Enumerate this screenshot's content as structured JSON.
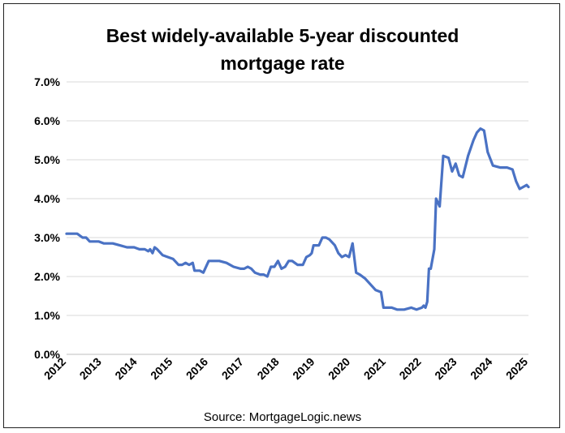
{
  "chart_data": {
    "type": "line",
    "title_lines": [
      "Best widely-available 5-year discounted",
      "mortgage rate"
    ],
    "source": "Source: MortgageLogic.news",
    "xlabel": "",
    "ylabel": "",
    "xlim": [
      2012,
      2025
    ],
    "ylim": [
      0,
      7
    ],
    "y_ticks": [
      {
        "value": 0,
        "label": "0.0%"
      },
      {
        "value": 1,
        "label": "1.0%"
      },
      {
        "value": 2,
        "label": "2.0%"
      },
      {
        "value": 3,
        "label": "3.0%"
      },
      {
        "value": 4,
        "label": "4.0%"
      },
      {
        "value": 5,
        "label": "5.0%"
      },
      {
        "value": 6,
        "label": "6.0%"
      },
      {
        "value": 7,
        "label": "7.0%"
      }
    ],
    "x_ticks": [
      {
        "value": 2012,
        "label": "2012"
      },
      {
        "value": 2013,
        "label": "2013"
      },
      {
        "value": 2014,
        "label": "2014"
      },
      {
        "value": 2015,
        "label": "2015"
      },
      {
        "value": 2016,
        "label": "2016"
      },
      {
        "value": 2017,
        "label": "2017"
      },
      {
        "value": 2018,
        "label": "2018"
      },
      {
        "value": 2019,
        "label": "2019"
      },
      {
        "value": 2020,
        "label": "2020"
      },
      {
        "value": 2021,
        "label": "2021"
      },
      {
        "value": 2022,
        "label": "2022"
      },
      {
        "value": 2023,
        "label": "2023"
      },
      {
        "value": 2024,
        "label": "2024"
      },
      {
        "value": 2025,
        "label": "2025"
      }
    ],
    "grid": true,
    "series_color": "#4a72c4",
    "series": [
      {
        "x": [
          2012.0,
          2012.1,
          2012.3,
          2012.45,
          2012.55,
          2012.65,
          2012.7,
          2012.9,
          2013.05,
          2013.3,
          2013.5,
          2013.7,
          2013.9,
          2014.05,
          2014.2,
          2014.3,
          2014.35,
          2014.42,
          2014.48,
          2014.55,
          2014.7,
          2014.85,
          2015.0,
          2015.05,
          2015.15,
          2015.25,
          2015.35,
          2015.45,
          2015.55,
          2015.6,
          2015.75,
          2015.85,
          2016.0,
          2016.1,
          2016.3,
          2016.5,
          2016.7,
          2016.9,
          2017.0,
          2017.1,
          2017.2,
          2017.3,
          2017.45,
          2017.55,
          2017.65,
          2017.75,
          2017.85,
          2017.95,
          2018.05,
          2018.15,
          2018.25,
          2018.35,
          2018.5,
          2018.65,
          2018.75,
          2018.85,
          2018.9,
          2018.95,
          2019.0,
          2019.1,
          2019.2,
          2019.3,
          2019.4,
          2019.55,
          2019.65,
          2019.75,
          2019.85,
          2019.95,
          2020.05,
          2020.15,
          2020.25,
          2020.4,
          2020.55,
          2020.7,
          2020.85,
          2020.92,
          2021.0,
          2021.15,
          2021.3,
          2021.5,
          2021.7,
          2021.85,
          2022.0,
          2022.05,
          2022.1,
          2022.15,
          2022.2,
          2022.25,
          2022.35,
          2022.4,
          2022.5,
          2022.6,
          2022.75,
          2022.85,
          2022.95,
          2023.05,
          2023.15,
          2023.3,
          2023.45,
          2023.55,
          2023.65,
          2023.75,
          2023.85,
          2024.0,
          2024.2,
          2024.4,
          2024.55,
          2024.65,
          2024.75,
          2024.85,
          2024.95,
          2025.0
        ],
        "y": [
          3.1,
          3.1,
          3.1,
          3.0,
          3.0,
          2.9,
          2.9,
          2.9,
          2.85,
          2.85,
          2.8,
          2.75,
          2.75,
          2.7,
          2.7,
          2.65,
          2.7,
          2.6,
          2.75,
          2.7,
          2.55,
          2.5,
          2.45,
          2.4,
          2.3,
          2.3,
          2.35,
          2.3,
          2.35,
          2.15,
          2.15,
          2.1,
          2.4,
          2.4,
          2.4,
          2.35,
          2.25,
          2.2,
          2.2,
          2.25,
          2.2,
          2.1,
          2.05,
          2.05,
          2.0,
          2.25,
          2.25,
          2.4,
          2.2,
          2.25,
          2.4,
          2.4,
          2.3,
          2.3,
          2.5,
          2.55,
          2.6,
          2.8,
          2.8,
          2.8,
          3.0,
          3.0,
          2.95,
          2.8,
          2.6,
          2.5,
          2.55,
          2.5,
          2.85,
          2.1,
          2.05,
          1.95,
          1.8,
          1.65,
          1.6,
          1.2,
          1.2,
          1.2,
          1.15,
          1.15,
          1.2,
          1.15,
          1.2,
          1.25,
          1.2,
          1.35,
          2.2,
          2.2,
          2.7,
          4.0,
          3.8,
          5.1,
          5.05,
          4.7,
          4.9,
          4.6,
          4.55,
          5.1,
          5.5,
          5.7,
          5.8,
          5.75,
          5.2,
          4.85,
          4.8,
          4.8,
          4.75,
          4.45,
          4.25,
          4.3,
          4.35,
          4.3
        ]
      }
    ]
  }
}
